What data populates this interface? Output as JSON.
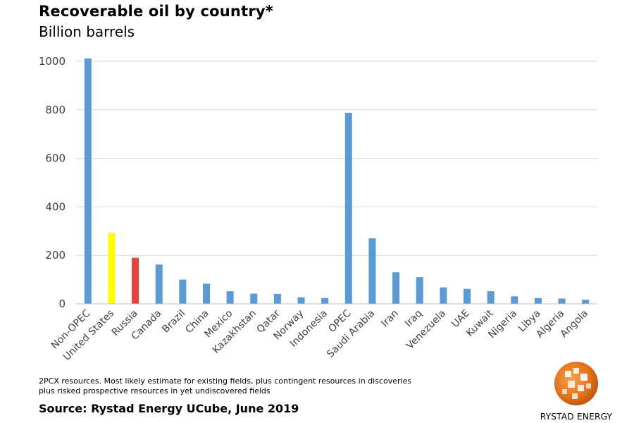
{
  "header": {
    "title": "Recoverable oil by country*",
    "subtitle": "Billion barrels"
  },
  "footnote": {
    "line1": "2PCX resources. Most likely estimate for existing fields, plus contingent resources in discoveries",
    "line2": "plus risked prospective resources in yet undiscovered fields"
  },
  "source": "Source: Rystad Energy UCube, June 2019",
  "logo": {
    "text": "RYSTAD ENERGY",
    "icon": "globe-logo-icon"
  },
  "chart_data": {
    "type": "bar",
    "title": "Recoverable oil by country*",
    "subtitle": "Billion barrels",
    "categories": [
      "Non-OPEC",
      "United States",
      "Russia",
      "Canada",
      "Brazil",
      "China",
      "Mexico",
      "Kazakhstan",
      "Qatar",
      "Norway",
      "Indonesia",
      "OPEC",
      "Saudi Arabia",
      "Iran",
      "Iraq",
      "Venezuela",
      "UAE",
      "Kuwait",
      "Nigeria",
      "Libya",
      "Algeria",
      "Angola"
    ],
    "values": [
      1012,
      293,
      190,
      162,
      100,
      83,
      52,
      42,
      41,
      27,
      24,
      788,
      270,
      130,
      110,
      68,
      62,
      52,
      31,
      24,
      22,
      17
    ],
    "colors": [
      "#5B9BD5",
      "#FFFF00",
      "#E8413C",
      "#5B9BD5",
      "#5B9BD5",
      "#5B9BD5",
      "#5B9BD5",
      "#5B9BD5",
      "#5B9BD5",
      "#5B9BD5",
      "#5B9BD5",
      "#5B9BD5",
      "#5B9BD5",
      "#5B9BD5",
      "#5B9BD5",
      "#5B9BD5",
      "#5B9BD5",
      "#5B9BD5",
      "#5B9BD5",
      "#5B9BD5",
      "#5B9BD5",
      "#5B9BD5"
    ],
    "yticks": [
      0,
      200,
      400,
      600,
      800,
      1000
    ],
    "ylim": [
      0,
      1000
    ],
    "grid": true,
    "legend": "none"
  }
}
